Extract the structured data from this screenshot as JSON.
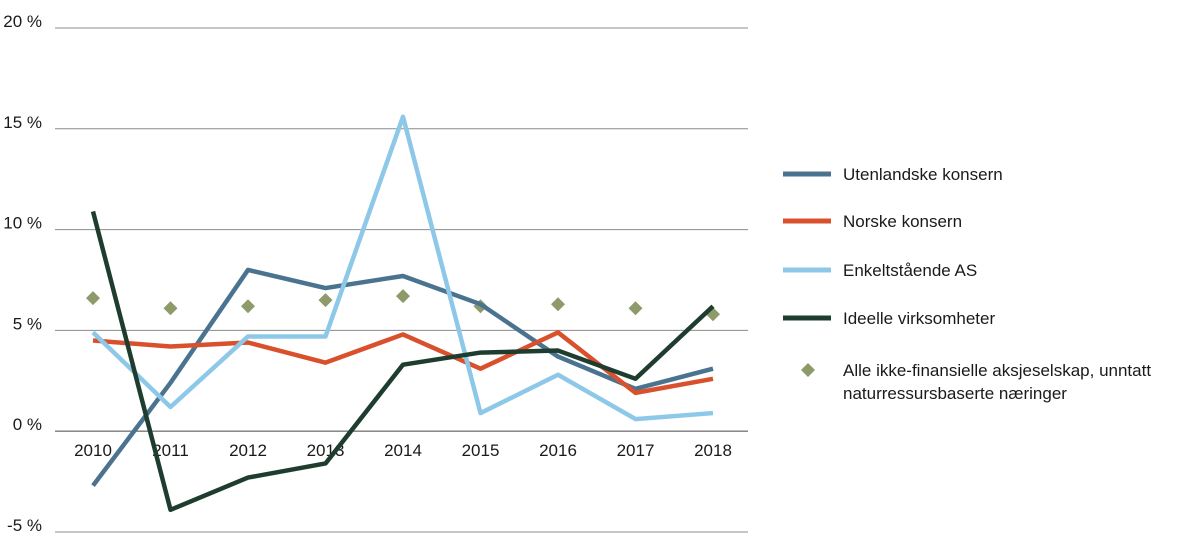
{
  "chart_data": {
    "type": "line",
    "title": "",
    "xlabel": "",
    "ylabel": "",
    "x": [
      "2010",
      "2011",
      "2012",
      "2013",
      "2014",
      "2015",
      "2016",
      "2017",
      "2018"
    ],
    "ylim": [
      -5,
      20
    ],
    "yticks": [
      20,
      15,
      10,
      5,
      0,
      -5
    ],
    "ytick_labels": [
      "20 %",
      "15 %",
      "10 %",
      "5 %",
      "0 %",
      "-5 %"
    ],
    "grid": true,
    "legend_position": "right",
    "series": [
      {
        "name": "Utenlandske konsern",
        "kind": "line",
        "color": "#4a7390",
        "values": [
          -2.7,
          2.4,
          8.0,
          7.1,
          7.7,
          6.3,
          3.7,
          2.1,
          3.1
        ]
      },
      {
        "name": "Norske konsern",
        "kind": "line",
        "color": "#d9512c",
        "values": [
          4.5,
          4.2,
          4.4,
          3.4,
          4.8,
          3.1,
          4.9,
          1.9,
          2.6
        ]
      },
      {
        "name": "Enkeltstående AS",
        "kind": "line",
        "color": "#8ec8e8",
        "values": [
          4.9,
          1.2,
          4.7,
          4.7,
          15.6,
          0.9,
          2.8,
          0.6,
          0.9
        ]
      },
      {
        "name": "Ideelle virksomheter",
        "kind": "line",
        "color": "#1f3d2f",
        "values": [
          10.9,
          -3.9,
          -2.3,
          -1.6,
          3.3,
          3.9,
          4.0,
          2.6,
          6.2
        ]
      },
      {
        "name": "Alle ikke-finansielle aksjeselskap, unntatt naturressursbaserte næringer",
        "name_lines": [
          "Alle ikke-finansielle aksjeselskap, unntatt",
          "naturressursbaserte næringer"
        ],
        "kind": "marker",
        "marker": "diamond",
        "color": "#8e9a69",
        "values": [
          6.6,
          6.1,
          6.2,
          6.5,
          6.7,
          6.2,
          6.3,
          6.1,
          5.8
        ]
      }
    ]
  }
}
